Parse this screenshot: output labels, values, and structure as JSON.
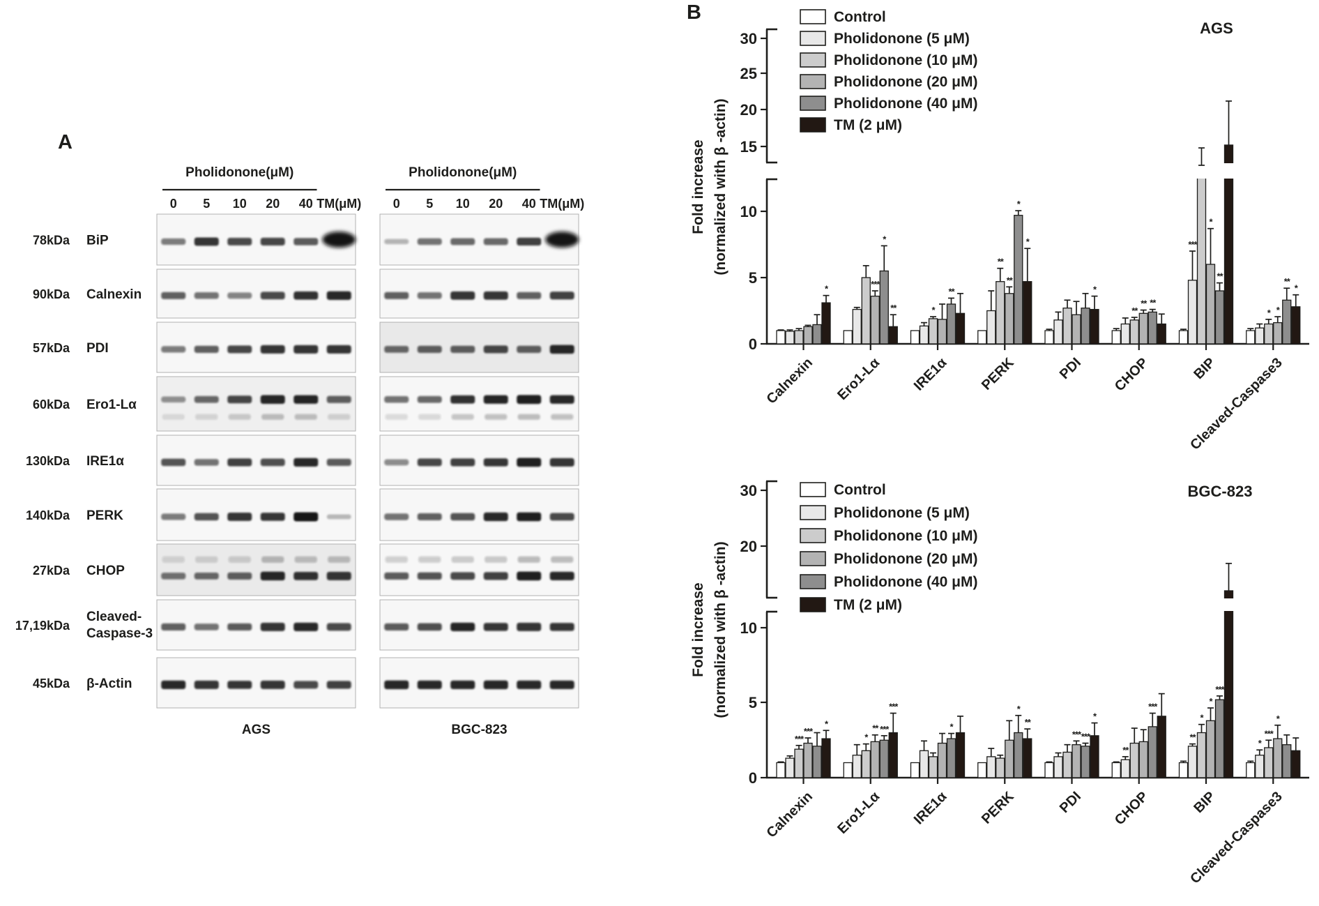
{
  "figure": {
    "panel_a_label": "A",
    "panel_b_label": "B"
  },
  "panel_a": {
    "treatment_header": "Pholidonone(μM)",
    "lane_labels": [
      "0",
      "5",
      "10",
      "20",
      "40",
      "TM(μM)"
    ],
    "cell_line_labels": [
      "AGS",
      "BGC-823"
    ],
    "rows": [
      {
        "kda": "78kDa",
        "name_lines": [
          "BiP"
        ],
        "ags": [
          0.45,
          0.85,
          0.7,
          0.72,
          0.62,
          1.0
        ],
        "bgc": [
          0.18,
          0.5,
          0.55,
          0.55,
          0.75,
          1.0
        ],
        "tm_blob": true
      },
      {
        "kda": "90kDa",
        "name_lines": [
          "Calnexin"
        ],
        "ags": [
          0.6,
          0.5,
          0.42,
          0.7,
          0.82,
          0.9
        ],
        "bgc": [
          0.6,
          0.5,
          0.85,
          0.85,
          0.6,
          0.75
        ]
      },
      {
        "kda": "57kDa",
        "name_lines": [
          "PDI"
        ],
        "ags": [
          0.45,
          0.6,
          0.72,
          0.85,
          0.85,
          0.85
        ],
        "bgc": [
          0.55,
          0.6,
          0.6,
          0.72,
          0.6,
          0.92
        ],
        "bg_bgc": "#e9e9e9"
      },
      {
        "kda": "60kDa",
        "name_lines": [
          "Ero1-Lα"
        ],
        "ags": [
          0.35,
          0.55,
          0.72,
          0.92,
          0.88,
          0.6
        ],
        "bgc": [
          0.5,
          0.55,
          0.82,
          0.88,
          0.95,
          0.9
        ],
        "doublet_below": true,
        "bg_ags": "#efefef"
      },
      {
        "kda": "130kDa",
        "name_lines": [
          "IRE1α"
        ],
        "ags": [
          0.65,
          0.5,
          0.75,
          0.68,
          0.9,
          0.62
        ],
        "bgc": [
          0.38,
          0.72,
          0.75,
          0.8,
          0.95,
          0.85
        ]
      },
      {
        "kda": "140kDa",
        "name_lines": [
          "PERK"
        ],
        "ags": [
          0.45,
          0.65,
          0.85,
          0.8,
          1.0,
          0.12
        ],
        "bgc": [
          0.5,
          0.6,
          0.65,
          0.9,
          0.95,
          0.7
        ]
      },
      {
        "kda": "27kDa",
        "name_lines": [
          "CHOP"
        ],
        "ags": [
          0.5,
          0.55,
          0.6,
          0.92,
          0.82,
          0.85
        ],
        "bgc": [
          0.62,
          0.65,
          0.7,
          0.75,
          0.95,
          0.9
        ],
        "doublet_above": true,
        "bg_ags": "#eaeaea"
      },
      {
        "kda": "17,19kDa",
        "name_lines": [
          "Cleaved-",
          "Caspase-3"
        ],
        "ags": [
          0.6,
          0.5,
          0.62,
          0.85,
          0.9,
          0.7
        ],
        "bgc": [
          0.62,
          0.68,
          0.88,
          0.8,
          0.85,
          0.8
        ]
      },
      {
        "kda": "45kDa",
        "name_lines": [
          "β-Actin"
        ],
        "ags": [
          0.9,
          0.85,
          0.8,
          0.85,
          0.7,
          0.75
        ],
        "bgc": [
          0.92,
          0.9,
          0.9,
          0.92,
          0.9,
          0.9
        ]
      }
    ]
  },
  "chart_data": [
    {
      "type": "bar",
      "title": "AGS",
      "ylabel_line1": "Fold increase",
      "ylabel_line2": "(normalized with β -actin)",
      "categories": [
        "Calnexin",
        "Ero1-Lα",
        "IRE1α",
        "PERK",
        "PDI",
        "CHOP",
        "BIP",
        "Cleaved-Caspase3"
      ],
      "y_axis": {
        "broken": true,
        "lower_ticks": [
          0,
          5,
          10
        ],
        "upper_ticks": [
          15,
          20,
          25,
          30
        ],
        "ylim": [
          0,
          30
        ]
      },
      "legend_position": "upper-left",
      "series": [
        {
          "name": "Control",
          "color": "#ffffff",
          "values": [
            1,
            1,
            1,
            1,
            1,
            1,
            1,
            1
          ],
          "errors": [
            0.05,
            0,
            0,
            0,
            0.1,
            0.15,
            0.1,
            0.15
          ],
          "sig": [
            "",
            "",
            "",
            "",
            "",
            "",
            "",
            ""
          ]
        },
        {
          "name": "Pholidonone (5 μM)",
          "color": "#e8e8e8",
          "values": [
            0.95,
            2.6,
            1.35,
            2.5,
            1.8,
            1.5,
            4.8,
            1.2
          ],
          "errors": [
            0.1,
            0.15,
            0.25,
            1.5,
            0.6,
            0.45,
            2.2,
            0.3
          ],
          "sig": [
            "",
            "",
            "",
            "",
            "",
            "",
            "***",
            ""
          ]
        },
        {
          "name": "Pholidonone (10 μM)",
          "color": "#cccccc",
          "values": [
            1.0,
            5.0,
            1.9,
            4.7,
            2.7,
            1.8,
            12.6,
            1.5
          ],
          "errors": [
            0.15,
            0.9,
            0.15,
            1.0,
            0.6,
            0.2,
            2.2,
            0.35
          ],
          "sig": [
            "",
            "",
            "*",
            "**",
            "",
            "**",
            "",
            "*"
          ]
        },
        {
          "name": "Pholidonone (20 μM)",
          "color": "#b3b3b3",
          "values": [
            1.3,
            3.6,
            1.85,
            3.8,
            2.2,
            2.3,
            6.0,
            1.6
          ],
          "errors": [
            0.1,
            0.4,
            1.15,
            0.5,
            1.0,
            0.25,
            2.7,
            0.45
          ],
          "sig": [
            "",
            "***",
            "",
            "**",
            "",
            "**",
            "*",
            "*"
          ]
        },
        {
          "name": "Pholidonone (40 μM)",
          "color": "#8e8e8e",
          "values": [
            1.45,
            5.5,
            3.0,
            9.7,
            2.7,
            2.4,
            4.0,
            3.3
          ],
          "errors": [
            0.75,
            1.9,
            0.45,
            0.35,
            1.1,
            0.2,
            0.6,
            0.9
          ],
          "sig": [
            "",
            "*",
            "**",
            "*",
            "",
            "**",
            "**",
            "**"
          ]
        },
        {
          "name": "TM (2 μM)",
          "color": "#221813",
          "values": [
            3.1,
            1.3,
            2.3,
            4.7,
            2.6,
            1.5,
            15.2,
            2.8
          ],
          "errors": [
            0.55,
            0.9,
            1.5,
            2.5,
            1.0,
            0.75,
            6.1,
            0.9
          ],
          "sig": [
            "*",
            "**",
            "",
            "*",
            "*",
            "",
            "",
            "*"
          ]
        }
      ]
    },
    {
      "type": "bar",
      "title": "BGC-823",
      "ylabel_line1": "Fold increase",
      "ylabel_line2": "(normalized with β -actin)",
      "categories": [
        "Calnexin",
        "Ero1-Lα",
        "IRE1α",
        "PERK",
        "PDI",
        "CHOP",
        "BIP",
        "Cleaved-Caspase3"
      ],
      "y_axis": {
        "broken": true,
        "lower_ticks": [
          0,
          5,
          10
        ],
        "upper_ticks": [
          20,
          30
        ],
        "ylim": [
          0,
          30
        ]
      },
      "legend_position": "upper-left",
      "series": [
        {
          "name": "Control",
          "color": "#ffffff",
          "values": [
            1,
            1,
            1,
            1,
            1,
            1,
            1,
            1
          ],
          "errors": [
            0.05,
            0,
            0,
            0,
            0.05,
            0.05,
            0.1,
            0.1
          ],
          "sig": [
            "",
            "",
            "",
            "",
            "",
            "",
            "",
            ""
          ]
        },
        {
          "name": "Pholidonone (5 μM)",
          "color": "#e8e8e8",
          "values": [
            1.3,
            1.5,
            1.8,
            1.4,
            1.4,
            1.2,
            2.1,
            1.5
          ],
          "errors": [
            0.15,
            0.7,
            0.65,
            0.55,
            0.25,
            0.2,
            0.15,
            0.35
          ],
          "sig": [
            "",
            "",
            "",
            "",
            "",
            "**",
            "**",
            "*"
          ]
        },
        {
          "name": "Pholidonone (10 μM)",
          "color": "#cccccc",
          "values": [
            1.9,
            1.8,
            1.4,
            1.3,
            1.7,
            2.3,
            3.0,
            2.0
          ],
          "errors": [
            0.25,
            0.45,
            0.25,
            0.2,
            0.5,
            1.0,
            0.55,
            0.5
          ],
          "sig": [
            "***",
            "*",
            "",
            "",
            "",
            "",
            "*",
            "***"
          ]
        },
        {
          "name": "Pholidonone (20 μM)",
          "color": "#b3b3b3",
          "values": [
            2.3,
            2.4,
            2.3,
            2.5,
            2.2,
            2.4,
            3.8,
            2.6
          ],
          "errors": [
            0.35,
            0.45,
            0.65,
            1.3,
            0.25,
            0.8,
            0.85,
            0.9
          ],
          "sig": [
            "***",
            "**",
            "",
            "",
            "***",
            "",
            "*",
            "*"
          ]
        },
        {
          "name": "Pholidonone (40 μM)",
          "color": "#8e8e8e",
          "values": [
            2.1,
            2.5,
            2.6,
            3.0,
            2.1,
            3.4,
            5.2,
            2.2
          ],
          "errors": [
            0.9,
            0.3,
            0.35,
            1.15,
            0.2,
            0.9,
            0.25,
            0.65
          ],
          "sig": [
            "",
            "***",
            "*",
            "*",
            "***",
            "***",
            "***",
            ""
          ]
        },
        {
          "name": "TM (2 μM)",
          "color": "#221813",
          "values": [
            2.6,
            3.0,
            3.0,
            2.6,
            2.8,
            4.1,
            12.0,
            1.8
          ],
          "errors": [
            0.55,
            1.3,
            1.1,
            0.65,
            0.85,
            1.5,
            4.9,
            0.85
          ],
          "sig": [
            "*",
            "***",
            "",
            "**",
            "*",
            "",
            "",
            ""
          ]
        }
      ]
    }
  ]
}
